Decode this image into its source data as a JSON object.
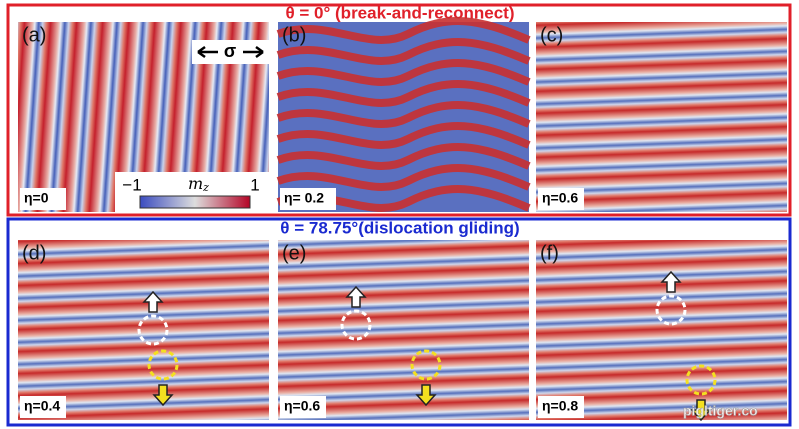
{
  "figure": {
    "groups": [
      {
        "title": "θ = 0° (break-and-reconnect)",
        "panels": [
          {
            "label": "(a)",
            "eta": "η=0"
          },
          {
            "label": "(b)",
            "eta": "η= 0.2"
          },
          {
            "label": "(c)",
            "eta": "η=0.6"
          }
        ]
      },
      {
        "title": "θ = 78.75°(dislocation gliding)",
        "panels": [
          {
            "label": "(d)",
            "eta": "η=0.4"
          },
          {
            "label": "(e)",
            "eta": "η=0.6"
          },
          {
            "label": "(f)",
            "eta": "η=0.8"
          }
        ]
      }
    ],
    "colorbar": {
      "min": "−1",
      "label": "m",
      "label_sub": "z",
      "max": "1"
    },
    "stress_label": "σ",
    "watermark": "pigltiger.co"
  }
}
